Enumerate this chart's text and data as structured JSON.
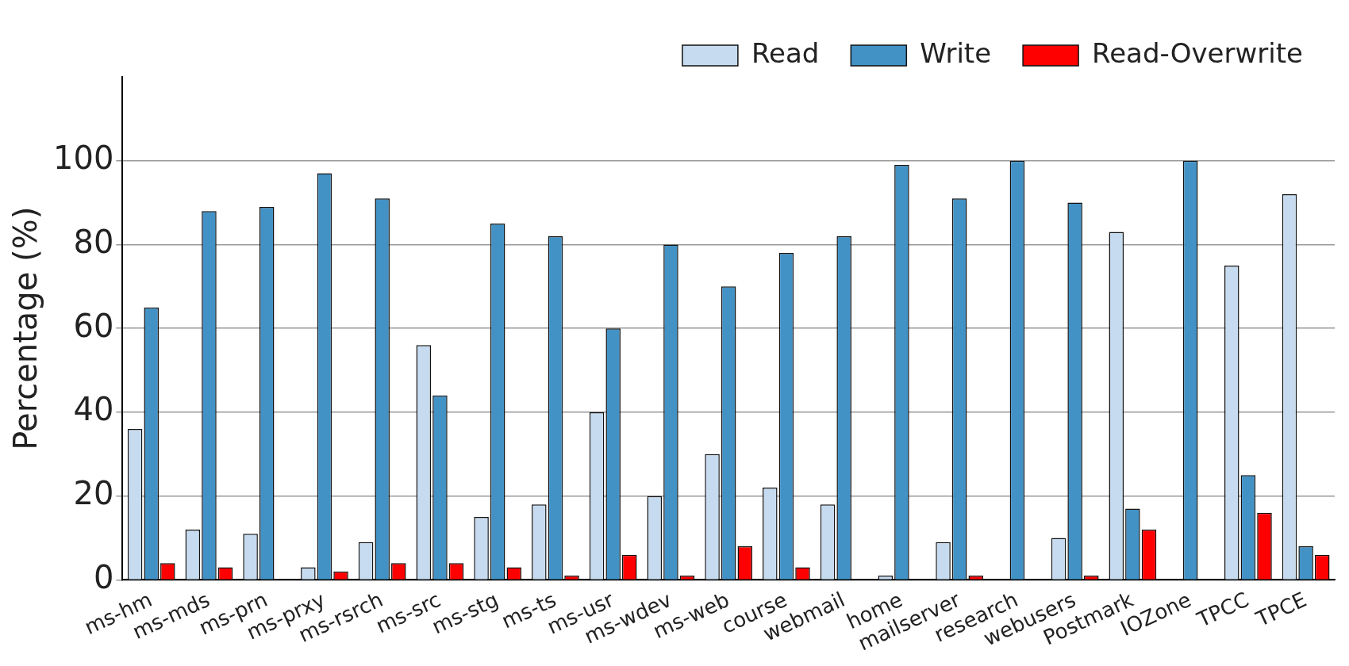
{
  "chart_data": {
    "type": "bar",
    "ylabel": "Percentage (%)",
    "categories": [
      "ms-hm",
      "ms-mds",
      "ms-prn",
      "ms-prxy",
      "ms-rsrch",
      "ms-src",
      "ms-stg",
      "ms-ts",
      "ms-usr",
      "ms-wdev",
      "ms-web",
      "course",
      "webmail",
      "home",
      "mailserver",
      "research",
      "webusers",
      "Postmark",
      "IOZone",
      "TPCC",
      "TPCE"
    ],
    "series": [
      {
        "name": "Read",
        "color": "#c6dbef",
        "values": [
          36,
          12,
          11,
          3,
          9,
          56,
          15,
          18,
          40,
          20,
          30,
          22,
          18,
          1,
          9,
          0,
          10,
          83,
          0,
          75,
          92
        ]
      },
      {
        "name": "Write",
        "color": "#4292c6",
        "values": [
          65,
          88,
          89,
          97,
          91,
          44,
          85,
          82,
          60,
          80,
          70,
          78,
          82,
          99,
          91,
          100,
          90,
          17,
          100,
          25,
          8
        ]
      },
      {
        "name": "Read-Overwrite",
        "color": "#ff0000",
        "values": [
          4,
          3,
          0,
          2,
          4,
          4,
          3,
          1,
          6,
          1,
          8,
          3,
          0,
          0,
          1,
          0,
          1,
          12,
          0,
          16,
          6
        ]
      }
    ],
    "ylim": [
      0,
      120
    ],
    "yticks": [
      0,
      20,
      40,
      60,
      80,
      100
    ],
    "grid": "y",
    "legend": "top right"
  }
}
